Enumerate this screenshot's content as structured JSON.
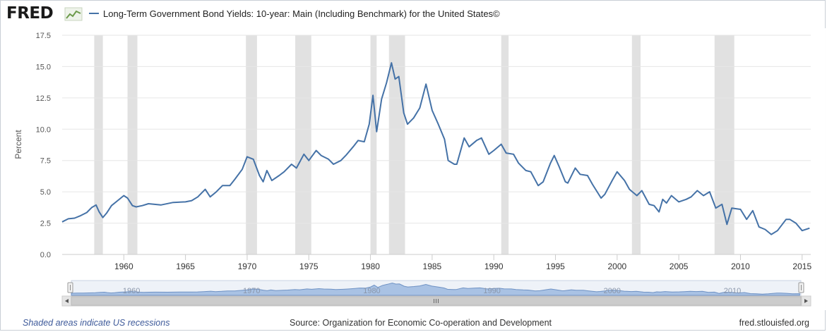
{
  "header": {
    "logo_text": "FRED",
    "logo_icon": "line-chart-icon"
  },
  "chart_data": {
    "type": "line",
    "title": "",
    "series": [
      {
        "name": "Long-Term Government Bond Yields: 10-year: Main (Including Benchmark) for the United States©",
        "color": "#4572a7",
        "points": [
          [
            1955.0,
            2.6
          ],
          [
            1955.5,
            2.85
          ],
          [
            1956.0,
            2.9
          ],
          [
            1956.5,
            3.1
          ],
          [
            1957.0,
            3.35
          ],
          [
            1957.4,
            3.75
          ],
          [
            1957.75,
            3.95
          ],
          [
            1958.0,
            3.4
          ],
          [
            1958.3,
            2.95
          ],
          [
            1958.6,
            3.3
          ],
          [
            1959.0,
            3.9
          ],
          [
            1959.5,
            4.3
          ],
          [
            1960.0,
            4.7
          ],
          [
            1960.3,
            4.5
          ],
          [
            1960.7,
            3.9
          ],
          [
            1961.0,
            3.8
          ],
          [
            1961.5,
            3.9
          ],
          [
            1962.0,
            4.05
          ],
          [
            1963.0,
            3.95
          ],
          [
            1964.0,
            4.15
          ],
          [
            1965.0,
            4.2
          ],
          [
            1965.5,
            4.3
          ],
          [
            1966.0,
            4.6
          ],
          [
            1966.6,
            5.2
          ],
          [
            1967.0,
            4.6
          ],
          [
            1967.5,
            5.0
          ],
          [
            1968.0,
            5.5
          ],
          [
            1968.6,
            5.5
          ],
          [
            1969.0,
            6.0
          ],
          [
            1969.6,
            6.8
          ],
          [
            1970.0,
            7.8
          ],
          [
            1970.5,
            7.6
          ],
          [
            1971.0,
            6.3
          ],
          [
            1971.3,
            5.8
          ],
          [
            1971.6,
            6.7
          ],
          [
            1972.0,
            5.9
          ],
          [
            1972.6,
            6.3
          ],
          [
            1973.0,
            6.6
          ],
          [
            1973.6,
            7.2
          ],
          [
            1974.0,
            6.9
          ],
          [
            1974.6,
            8.0
          ],
          [
            1975.0,
            7.5
          ],
          [
            1975.6,
            8.3
          ],
          [
            1976.0,
            7.9
          ],
          [
            1976.6,
            7.6
          ],
          [
            1977.0,
            7.2
          ],
          [
            1977.6,
            7.5
          ],
          [
            1978.0,
            7.9
          ],
          [
            1978.6,
            8.6
          ],
          [
            1979.0,
            9.1
          ],
          [
            1979.5,
            9.0
          ],
          [
            1979.9,
            10.4
          ],
          [
            1980.2,
            12.7
          ],
          [
            1980.5,
            9.8
          ],
          [
            1980.9,
            12.4
          ],
          [
            1981.3,
            13.7
          ],
          [
            1981.7,
            15.3
          ],
          [
            1982.0,
            14.0
          ],
          [
            1982.3,
            14.2
          ],
          [
            1982.7,
            11.3
          ],
          [
            1983.0,
            10.4
          ],
          [
            1983.5,
            10.9
          ],
          [
            1984.0,
            11.7
          ],
          [
            1984.5,
            13.6
          ],
          [
            1985.0,
            11.5
          ],
          [
            1985.5,
            10.4
          ],
          [
            1986.0,
            9.2
          ],
          [
            1986.3,
            7.5
          ],
          [
            1986.8,
            7.2
          ],
          [
            1987.0,
            7.2
          ],
          [
            1987.6,
            9.3
          ],
          [
            1988.0,
            8.6
          ],
          [
            1988.6,
            9.1
          ],
          [
            1989.0,
            9.3
          ],
          [
            1989.6,
            8.0
          ],
          [
            1990.0,
            8.3
          ],
          [
            1990.6,
            8.8
          ],
          [
            1991.0,
            8.1
          ],
          [
            1991.6,
            8.0
          ],
          [
            1992.0,
            7.3
          ],
          [
            1992.6,
            6.7
          ],
          [
            1993.0,
            6.6
          ],
          [
            1993.6,
            5.5
          ],
          [
            1994.0,
            5.8
          ],
          [
            1994.6,
            7.3
          ],
          [
            1994.9,
            7.9
          ],
          [
            1995.3,
            7.0
          ],
          [
            1995.8,
            5.8
          ],
          [
            1996.0,
            5.7
          ],
          [
            1996.6,
            6.9
          ],
          [
            1997.0,
            6.4
          ],
          [
            1997.6,
            6.3
          ],
          [
            1998.0,
            5.6
          ],
          [
            1998.7,
            4.5
          ],
          [
            1999.0,
            4.8
          ],
          [
            1999.6,
            5.9
          ],
          [
            2000.0,
            6.6
          ],
          [
            2000.6,
            5.9
          ],
          [
            2001.0,
            5.2
          ],
          [
            2001.6,
            4.7
          ],
          [
            2002.0,
            5.1
          ],
          [
            2002.6,
            4.0
          ],
          [
            2003.0,
            3.9
          ],
          [
            2003.4,
            3.4
          ],
          [
            2003.7,
            4.4
          ],
          [
            2004.0,
            4.1
          ],
          [
            2004.4,
            4.7
          ],
          [
            2005.0,
            4.2
          ],
          [
            2005.6,
            4.4
          ],
          [
            2006.0,
            4.6
          ],
          [
            2006.5,
            5.1
          ],
          [
            2007.0,
            4.7
          ],
          [
            2007.5,
            5.0
          ],
          [
            2008.0,
            3.7
          ],
          [
            2008.5,
            4.0
          ],
          [
            2008.9,
            2.4
          ],
          [
            2009.3,
            3.7
          ],
          [
            2010.0,
            3.6
          ],
          [
            2010.5,
            2.8
          ],
          [
            2011.0,
            3.5
          ],
          [
            2011.5,
            2.2
          ],
          [
            2012.0,
            2.0
          ],
          [
            2012.5,
            1.6
          ],
          [
            2013.0,
            1.9
          ],
          [
            2013.7,
            2.8
          ],
          [
            2014.0,
            2.8
          ],
          [
            2014.5,
            2.5
          ],
          [
            2015.0,
            1.9
          ],
          [
            2015.6,
            2.1
          ]
        ]
      }
    ],
    "ylabel": "Percent",
    "xlabel": "",
    "ylim": [
      0,
      17.5
    ],
    "xlim": [
      1955.0,
      2015.7
    ],
    "y_ticks": [
      "0.0",
      "2.5",
      "5.0",
      "7.5",
      "10.0",
      "12.5",
      "15.0",
      "17.5"
    ],
    "x_ticks": [
      "1960",
      "1965",
      "1970",
      "1975",
      "1980",
      "1985",
      "1990",
      "1995",
      "2000",
      "2005",
      "2010",
      "2015"
    ],
    "recessions": [
      [
        1957.6,
        1958.3
      ],
      [
        1960.3,
        1961.1
      ],
      [
        1969.9,
        1970.8
      ],
      [
        1973.9,
        1975.2
      ],
      [
        1980.0,
        1980.5
      ],
      [
        1981.5,
        1982.8
      ],
      [
        1990.6,
        1991.2
      ],
      [
        2001.2,
        2001.9
      ],
      [
        2007.9,
        2009.5
      ]
    ],
    "grid": true,
    "legend_position": "top",
    "navigator": {
      "labels": [
        "1960",
        "1970",
        "1980",
        "1990",
        "2000",
        "2010"
      ]
    }
  },
  "footer": {
    "note": "Shaded areas indicate US recessions",
    "source": "Source: Organization for Economic Co-operation and Development",
    "site": "fred.stlouisfed.org"
  },
  "colors": {
    "line": "#4572a7",
    "recession": "#e1e1e1",
    "navigator_fill": "#a9c2e4"
  }
}
